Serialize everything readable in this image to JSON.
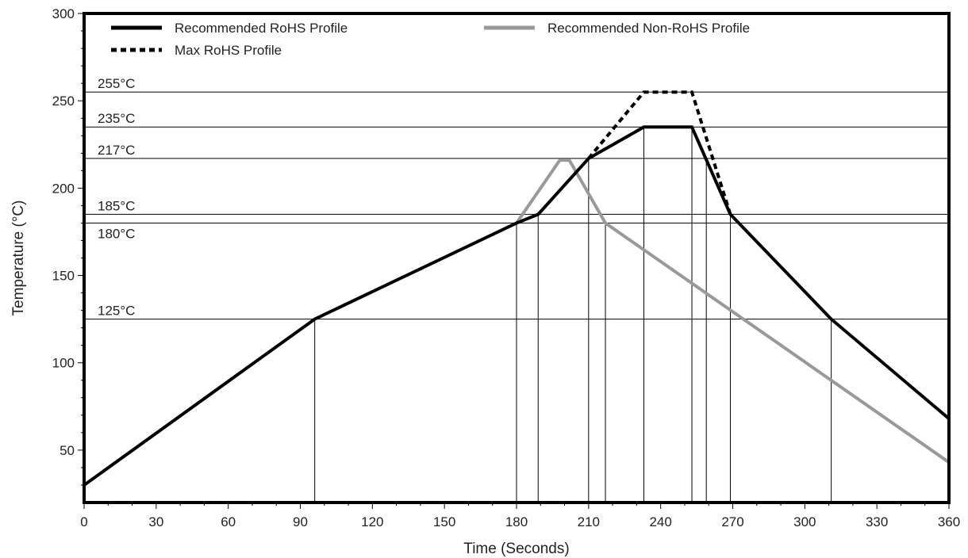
{
  "chart_data": {
    "type": "line",
    "xlabel": "Time (Seconds)",
    "ylabel": "Temperature (°C)",
    "xlim": [
      0,
      360
    ],
    "ylim": [
      20,
      300
    ],
    "x_ticks": [
      0,
      30,
      60,
      90,
      120,
      150,
      180,
      210,
      240,
      270,
      300,
      330,
      360
    ],
    "y_ticks": [
      50,
      100,
      150,
      200,
      250,
      300
    ],
    "grid": false,
    "legend_position": "top",
    "reference_lines": [
      {
        "y": 255,
        "label": "255°C"
      },
      {
        "y": 235,
        "label": "235°C"
      },
      {
        "y": 217,
        "label": "217°C"
      },
      {
        "y": 185,
        "label": "185°C"
      },
      {
        "y": 180,
        "label": "180°C"
      },
      {
        "y": 125,
        "label": "125°C"
      }
    ],
    "vertical_markers": [
      {
        "x": 96,
        "y": 125
      },
      {
        "x": 180,
        "y": 180
      },
      {
        "x": 189,
        "y": 185
      },
      {
        "x": 210,
        "y": 217
      },
      {
        "x": 217,
        "y": 180
      },
      {
        "x": 233,
        "y": 235
      },
      {
        "x": 253,
        "y": 235
      },
      {
        "x": 259,
        "y": 217
      },
      {
        "x": 269,
        "y": 185
      },
      {
        "x": 311,
        "y": 125
      }
    ],
    "series": [
      {
        "name": "Max RoHS Profile",
        "color": "#000000",
        "style": "dashed",
        "points": [
          [
            210,
            217
          ],
          [
            233,
            255
          ],
          [
            253,
            255
          ],
          [
            269,
            185
          ]
        ]
      },
      {
        "name": "Recommended Non-RoHS Profile",
        "color": "#999999",
        "style": "solid",
        "points": [
          [
            180,
            180
          ],
          [
            198,
            216
          ],
          [
            202,
            216
          ],
          [
            217,
            180
          ],
          [
            360,
            43
          ]
        ]
      },
      {
        "name": "Recommended RoHS Profile",
        "color": "#000000",
        "style": "solid",
        "points": [
          [
            0,
            30
          ],
          [
            96,
            125
          ],
          [
            180,
            180
          ],
          [
            189,
            185
          ],
          [
            210,
            217
          ],
          [
            233,
            235
          ],
          [
            253,
            235
          ],
          [
            269,
            185
          ],
          [
            311,
            125
          ],
          [
            360,
            68
          ]
        ]
      }
    ],
    "legend": [
      {
        "name": "Recommended RoHS Profile",
        "color": "#000000",
        "style": "solid"
      },
      {
        "name": "Recommended Non-RoHS Profile",
        "color": "#999999",
        "style": "solid"
      },
      {
        "name": "Max RoHS Profile",
        "color": "#000000",
        "style": "dashed"
      }
    ]
  }
}
